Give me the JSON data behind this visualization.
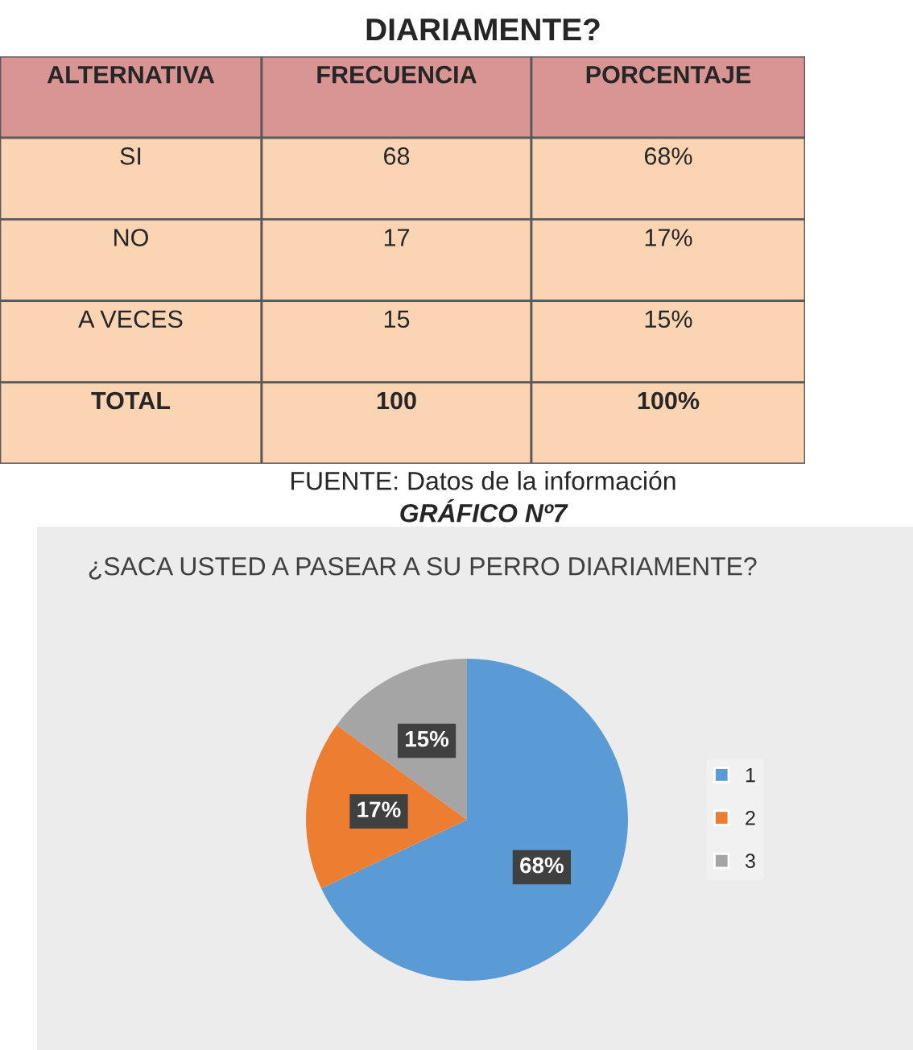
{
  "chart_data": [
    {
      "type": "other",
      "title": "DIARIAMENTE?",
      "annotations": [
        "ALTERNATIVA",
        "FRECUENCIA",
        "PORCENTAJE",
        "SI",
        "68",
        "68%",
        "NO",
        "17",
        "17%",
        "A VECES",
        "15",
        "15%",
        "TOTAL",
        "100",
        "100%"
      ]
    },
    {
      "type": "pie",
      "title": "¿SACA USTED A PASEAR A SU PERRO DIARIAMENTE?",
      "annotations": [
        "FUENTE: Datos de la información",
        "GRÁFICO Nº7"
      ],
      "categories": [
        "1",
        "2",
        "3"
      ],
      "values": [
        68,
        17,
        15
      ],
      "colors": [
        "#5b9bd5",
        "#ed7d31",
        "#a5a5a5"
      ],
      "value_labels": [
        "68%",
        "17%",
        "15%"
      ],
      "legend": "right"
    }
  ]
}
